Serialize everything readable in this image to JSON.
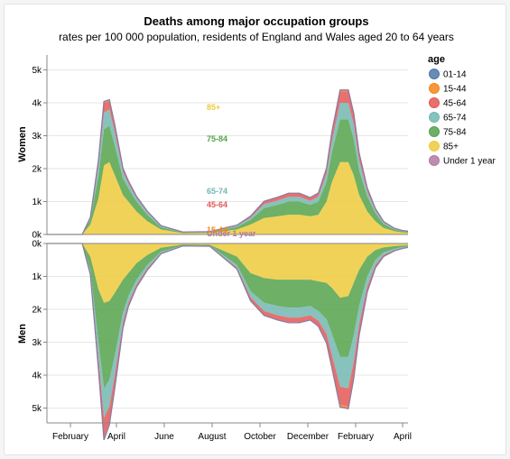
{
  "chart_data": {
    "type": "area",
    "title": "Deaths among major occupation groups",
    "subtitle": "rates per 100 000 population, residents of England and Wales aged 20 to 64 years",
    "x_ticks": [
      "February",
      "April",
      "June",
      "August",
      "October",
      "December",
      "February",
      "April"
    ],
    "y_ticks": [
      "0k",
      "1k",
      "2k",
      "3k",
      "4k",
      "5k"
    ],
    "legend": {
      "title": "age",
      "items": [
        {
          "label": "01-14",
          "color": "#4c78a8"
        },
        {
          "label": "15-44",
          "color": "#f58518"
        },
        {
          "label": "45-64",
          "color": "#e45756"
        },
        {
          "label": "65-74",
          "color": "#72b7b2"
        },
        {
          "label": "75-84",
          "color": "#54a24b"
        },
        {
          "label": "85+",
          "color": "#eeca3b"
        },
        {
          "label": "Under 1 year",
          "color": "#b279a2"
        }
      ]
    },
    "x": [
      0,
      0.7,
      1.3,
      1.6,
      1.9,
      2.1,
      2.3,
      2.5,
      2.8,
      3.0,
      3.3,
      3.7,
      4.2,
      5.0,
      6.0,
      7.0,
      7.5,
      8.0,
      8.5,
      8.9,
      9.3,
      9.7,
      10.0,
      10.3,
      10.5,
      10.8,
      11.1,
      11.3,
      11.5,
      11.8,
      12.1,
      12.4,
      12.8,
      13.1,
      13.3
    ],
    "panels": [
      {
        "name": "Women",
        "series": [
          {
            "name": "85+",
            "values": [
              0,
              0,
              0,
              0.3,
              1.1,
              2.1,
              2.2,
              1.8,
              1.2,
              1.0,
              0.7,
              0.4,
              0.15,
              0.04,
              0.05,
              0.15,
              0.3,
              0.5,
              0.55,
              0.6,
              0.6,
              0.55,
              0.6,
              1.0,
              1.6,
              2.2,
              2.2,
              1.8,
              1.2,
              0.7,
              0.4,
              0.2,
              0.1,
              0.06,
              0.05
            ]
          },
          {
            "name": "75-84",
            "values": [
              0,
              0,
              0,
              0.15,
              0.7,
              1.1,
              1.1,
              0.9,
              0.5,
              0.4,
              0.3,
              0.2,
              0.07,
              0.02,
              0.02,
              0.08,
              0.15,
              0.3,
              0.35,
              0.4,
              0.4,
              0.35,
              0.4,
              0.6,
              0.9,
              1.3,
              1.3,
              1.1,
              0.75,
              0.45,
              0.25,
              0.12,
              0.05,
              0.04,
              0.03
            ]
          },
          {
            "name": "65-74",
            "values": [
              0,
              0,
              0,
              0.05,
              0.3,
              0.5,
              0.5,
              0.4,
              0.2,
              0.15,
              0.1,
              0.07,
              0.03,
              0.01,
              0.01,
              0.03,
              0.06,
              0.12,
              0.13,
              0.14,
              0.14,
              0.12,
              0.15,
              0.25,
              0.35,
              0.5,
              0.5,
              0.45,
              0.3,
              0.15,
              0.08,
              0.04,
              0.02,
              0.01,
              0.01
            ]
          },
          {
            "name": "45-64",
            "values": [
              0,
              0,
              0,
              0.02,
              0.15,
              0.3,
              0.25,
              0.2,
              0.1,
              0.07,
              0.05,
              0.03,
              0.015,
              0.005,
              0.005,
              0.02,
              0.04,
              0.08,
              0.09,
              0.1,
              0.1,
              0.09,
              0.1,
              0.15,
              0.25,
              0.35,
              0.35,
              0.3,
              0.2,
              0.1,
              0.05,
              0.03,
              0.015,
              0.01,
              0.01
            ]
          },
          {
            "name": "15-44",
            "values": [
              0,
              0,
              0,
              0,
              0.02,
              0.04,
              0.04,
              0.03,
              0.015,
              0.01,
              0.008,
              0.005,
              0.002,
              0.001,
              0.001,
              0.003,
              0.006,
              0.01,
              0.012,
              0.013,
              0.013,
              0.012,
              0.013,
              0.02,
              0.03,
              0.04,
              0.04,
              0.035,
              0.025,
              0.012,
              0.006,
              0.003,
              0.002,
              0.001,
              0.001
            ]
          }
        ]
      },
      {
        "name": "Men",
        "series": [
          {
            "name": "85+",
            "values": [
              0,
              0,
              0,
              0.4,
              1.4,
              1.8,
              1.75,
              1.5,
              1.1,
              0.9,
              0.6,
              0.35,
              0.13,
              0.03,
              0.04,
              0.4,
              0.9,
              1.05,
              1.1,
              1.1,
              1.1,
              1.1,
              1.15,
              1.2,
              1.35,
              1.65,
              1.6,
              1.2,
              0.8,
              0.4,
              0.2,
              0.12,
              0.08,
              0.06,
              0.05
            ]
          },
          {
            "name": "75-84",
            "values": [
              0,
              0,
              0,
              0.4,
              1.6,
              2.6,
              2.4,
              1.9,
              1.0,
              0.7,
              0.5,
              0.3,
              0.12,
              0.03,
              0.03,
              0.25,
              0.55,
              0.75,
              0.8,
              0.85,
              0.85,
              0.8,
              0.9,
              1.1,
              1.4,
              1.8,
              1.85,
              1.6,
              1.1,
              0.6,
              0.3,
              0.15,
              0.08,
              0.05,
              0.04
            ]
          },
          {
            "name": "65-74",
            "values": [
              0,
              0,
              0,
              0.1,
              0.5,
              0.9,
              0.8,
              0.6,
              0.3,
              0.2,
              0.15,
              0.1,
              0.04,
              0.01,
              0.01,
              0.08,
              0.18,
              0.25,
              0.28,
              0.3,
              0.3,
              0.28,
              0.3,
              0.45,
              0.65,
              0.9,
              0.95,
              0.8,
              0.55,
              0.3,
              0.15,
              0.08,
              0.04,
              0.03,
              0.02
            ]
          },
          {
            "name": "45-64",
            "values": [
              0,
              0,
              0,
              0.04,
              0.3,
              0.6,
              0.5,
              0.35,
              0.15,
              0.1,
              0.07,
              0.05,
              0.02,
              0.005,
              0.005,
              0.04,
              0.1,
              0.12,
              0.13,
              0.14,
              0.14,
              0.13,
              0.15,
              0.25,
              0.35,
              0.55,
              0.55,
              0.45,
              0.3,
              0.15,
              0.08,
              0.04,
              0.02,
              0.01,
              0.01
            ]
          },
          {
            "name": "15-44",
            "values": [
              0,
              0,
              0,
              0.005,
              0.04,
              0.07,
              0.06,
              0.04,
              0.02,
              0.015,
              0.01,
              0.007,
              0.003,
              0.001,
              0.001,
              0.006,
              0.012,
              0.015,
              0.016,
              0.017,
              0.017,
              0.016,
              0.018,
              0.03,
              0.04,
              0.07,
              0.07,
              0.06,
              0.04,
              0.02,
              0.01,
              0.005,
              0.003,
              0.002,
              0.001
            ]
          }
        ]
      }
    ],
    "annotations": [
      {
        "label": "85+",
        "color": "#eeca3b"
      },
      {
        "label": "75-84",
        "color": "#54a24b"
      },
      {
        "label": "65-74",
        "color": "#72b7b2"
      },
      {
        "label": "45-64",
        "color": "#e45756"
      },
      {
        "label": "15-44",
        "color": "#f58518"
      },
      {
        "label": "Under 1 year",
        "color": "#b279a2"
      }
    ]
  }
}
